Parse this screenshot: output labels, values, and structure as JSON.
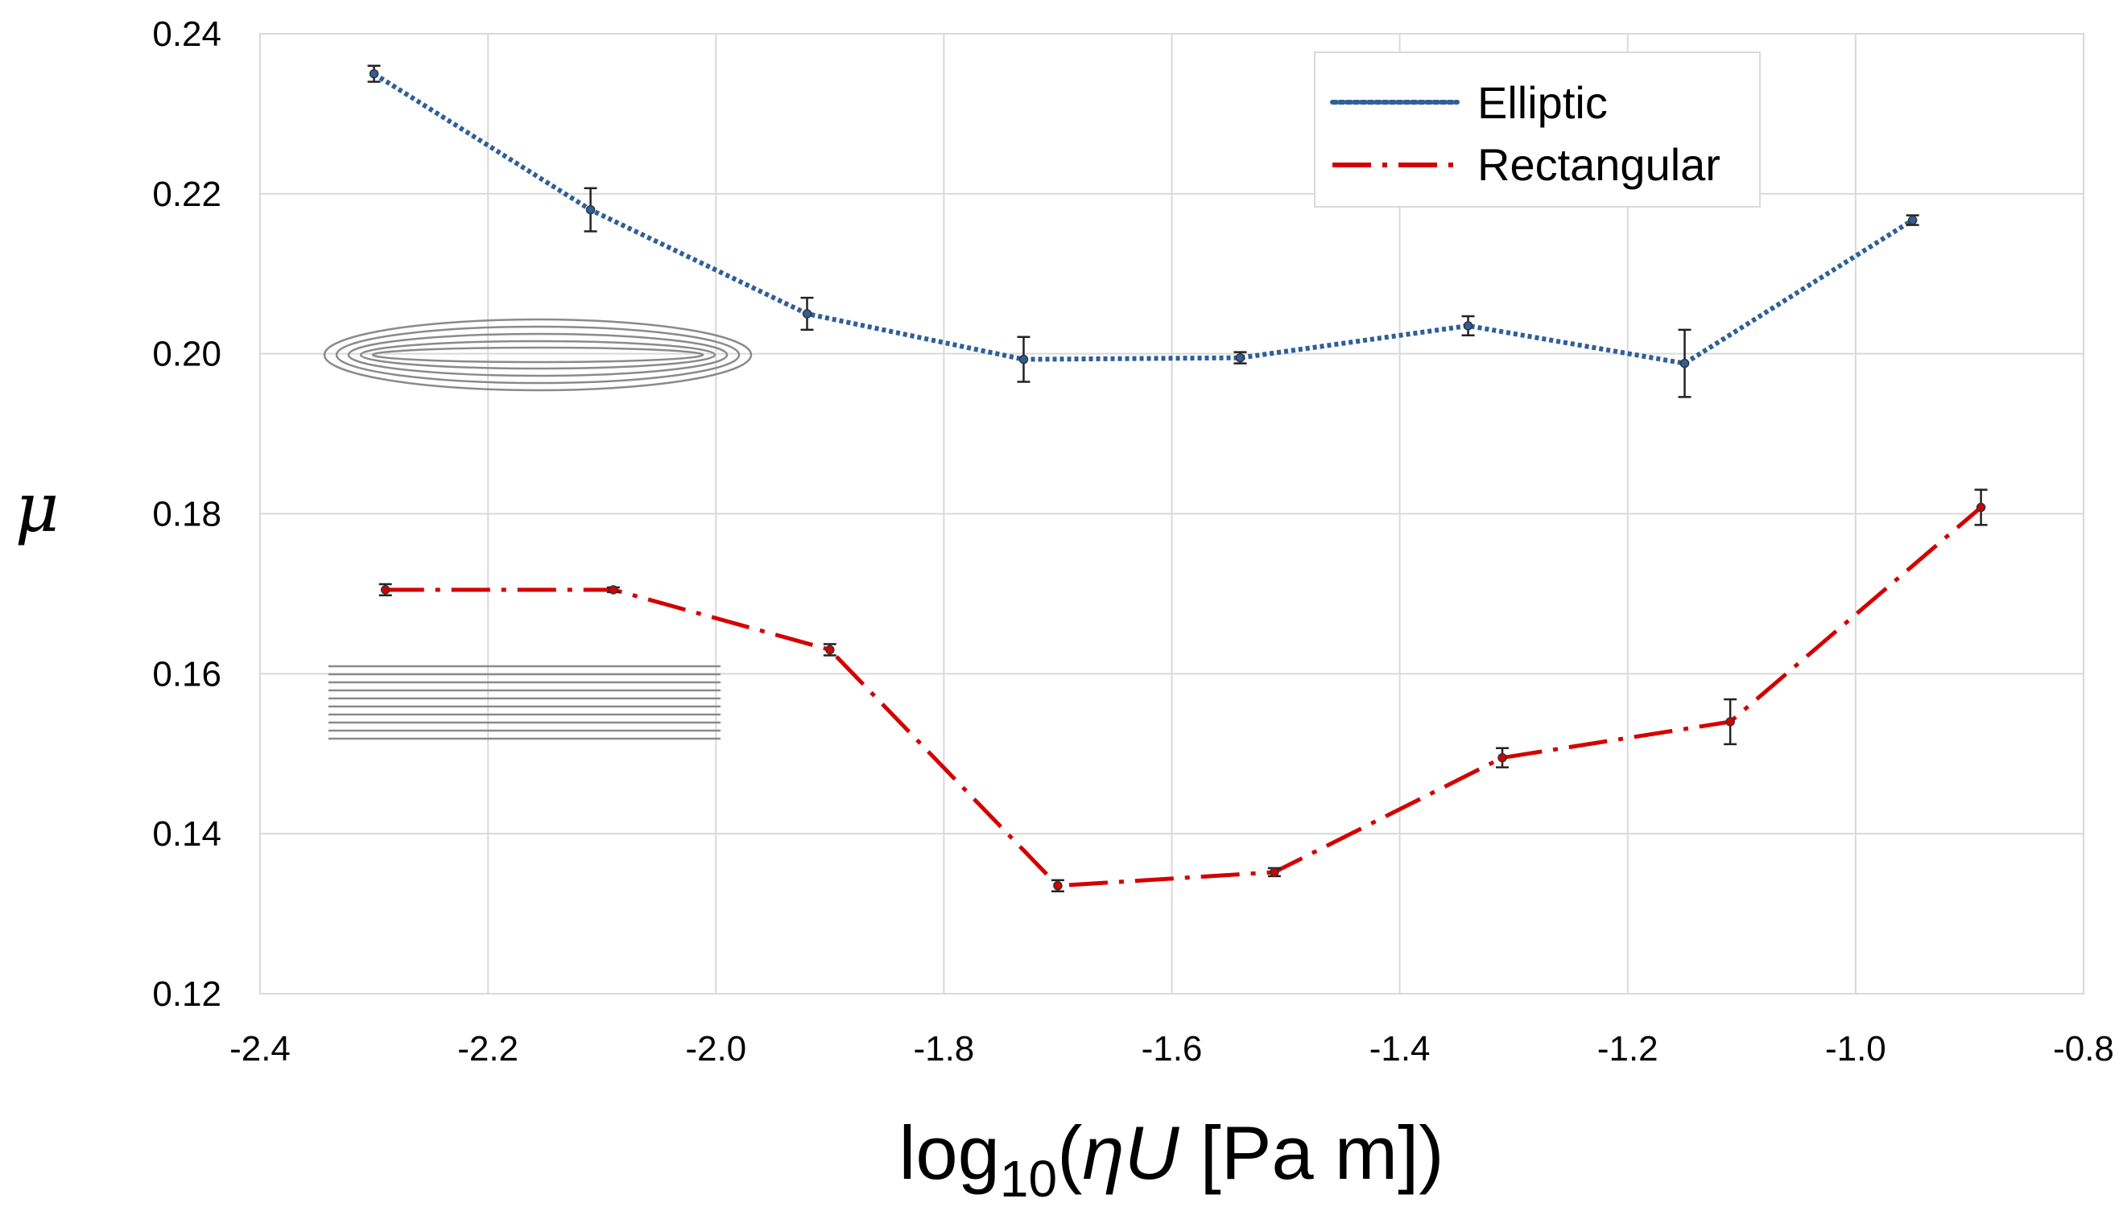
{
  "chart_data": {
    "type": "line",
    "title": "",
    "xlabel": {
      "prefix": "log",
      "subscript": "10",
      "open": "(",
      "symbol": "ηU",
      "units": " [Pa m])"
    },
    "ylabel": "μ",
    "xlim": [
      -2.4,
      -0.8
    ],
    "ylim": [
      0.12,
      0.24
    ],
    "x_ticks": [
      "-2.4",
      "-2.2",
      "-2.0",
      "-1.8",
      "-1.6",
      "-1.4",
      "-1.2",
      "-1.0",
      "-0.8"
    ],
    "y_ticks": [
      "0.12",
      "0.14",
      "0.16",
      "0.18",
      "0.20",
      "0.22",
      "0.24"
    ],
    "x_tick_values": [
      -2.4,
      -2.2,
      -2.0,
      -1.8,
      -1.6,
      -1.4,
      -1.2,
      -1.0,
      -0.8
    ],
    "y_tick_values": [
      0.12,
      0.14,
      0.16,
      0.18,
      0.2,
      0.22,
      0.24
    ],
    "grid": true,
    "legend_position": "top-right",
    "series": [
      {
        "name": "Elliptic",
        "color": "#2f5f97",
        "style": "dotted",
        "x": [
          -2.3,
          -2.11,
          -1.92,
          -1.73,
          -1.54,
          -1.34,
          -1.15,
          -0.95
        ],
        "y": [
          0.235,
          0.218,
          0.205,
          0.1993,
          0.1995,
          0.2035,
          0.1988,
          0.2167
        ],
        "err": [
          0.001,
          0.0027,
          0.002,
          0.0028,
          0.0007,
          0.0012,
          0.0042,
          0.0006
        ]
      },
      {
        "name": "Rectangular",
        "color": "#d40000",
        "style": "dashdot",
        "x": [
          -2.29,
          -2.09,
          -1.9,
          -1.7,
          -1.51,
          -1.31,
          -1.11,
          -0.89
        ],
        "y": [
          0.1705,
          0.1705,
          0.163,
          0.1335,
          0.1352,
          0.1495,
          0.154,
          0.1808
        ],
        "err": [
          0.0007,
          0.0003,
          0.0007,
          0.0007,
          0.0005,
          0.0012,
          0.0028,
          0.0022
        ]
      }
    ],
    "insets": [
      {
        "name": "ellipse-inset-icon",
        "description": "concentric ellipses",
        "near_y": 0.2
      },
      {
        "name": "rectangle-inset-icon",
        "description": "stacked horizontal lines",
        "near_y": 0.157
      }
    ]
  }
}
